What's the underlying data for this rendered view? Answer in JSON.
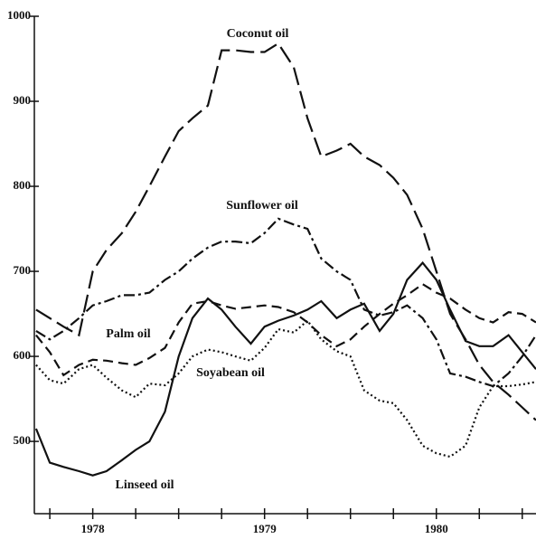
{
  "chart_data": {
    "type": "line",
    "x": [
      1977.67,
      1977.75,
      1977.83,
      1977.92,
      1978.0,
      1978.08,
      1978.17,
      1978.25,
      1978.33,
      1978.42,
      1978.5,
      1978.58,
      1978.67,
      1978.75,
      1978.83,
      1978.92,
      1979.0,
      1979.08,
      1979.17,
      1979.25,
      1979.33,
      1979.42,
      1979.5,
      1979.58,
      1979.67,
      1979.75,
      1979.83,
      1979.92,
      1980.0,
      1980.08,
      1980.17,
      1980.25,
      1980.33,
      1980.42,
      1980.5,
      1980.58
    ],
    "xlim": [
      1977.66,
      1980.58
    ],
    "xticks": [
      1978,
      1979,
      1980
    ],
    "xminorticks": [
      1977.75,
      1978.25,
      1978.5,
      1978.75,
      1979.25,
      1979.5,
      1979.75,
      1980.25,
      1980.5
    ],
    "ylim": [
      415,
      1000
    ],
    "yticks": [
      500,
      600,
      700,
      800,
      900,
      1000
    ],
    "series": [
      {
        "name": "Coconut oil",
        "color": "#111",
        "dash": "20,7",
        "values": [
          655,
          645,
          635,
          625,
          700,
          725,
          745,
          770,
          800,
          835,
          865,
          880,
          895,
          960,
          960,
          958,
          958,
          968,
          940,
          880,
          835,
          842,
          850,
          835,
          825,
          810,
          790,
          750,
          700,
          650,
          620,
          590,
          570,
          555,
          540,
          525
        ]
      },
      {
        "name": "Sunflower oil",
        "color": "#111",
        "dash": "12,4,3,4",
        "values": [
          630,
          620,
          630,
          645,
          660,
          665,
          672,
          672,
          675,
          690,
          700,
          715,
          728,
          735,
          735,
          733,
          745,
          762,
          755,
          750,
          715,
          700,
          690,
          655,
          648,
          652,
          660,
          645,
          620,
          580,
          576,
          570,
          565,
          580,
          600,
          625
        ]
      },
      {
        "name": "Palm oil",
        "color": "#111",
        "dash": "11,6",
        "values": [
          625,
          605,
          578,
          590,
          596,
          595,
          592,
          590,
          598,
          610,
          640,
          662,
          665,
          660,
          656,
          658,
          660,
          658,
          652,
          640,
          625,
          612,
          620,
          635,
          650,
          662,
          672,
          685,
          675,
          668,
          655,
          645,
          640,
          652,
          650,
          640
        ]
      },
      {
        "name": "Soyabean oil",
        "color": "#111",
        "dash": "2,3",
        "values": [
          590,
          572,
          568,
          585,
          590,
          575,
          560,
          552,
          568,
          566,
          580,
          600,
          608,
          605,
          600,
          595,
          610,
          632,
          628,
          642,
          620,
          606,
          600,
          560,
          548,
          545,
          525,
          495,
          486,
          482,
          495,
          540,
          565,
          565,
          567,
          570
        ]
      },
      {
        "name": "Linseed oil",
        "color": "#111",
        "dash": "none",
        "values": [
          515,
          475,
          470,
          465,
          460,
          465,
          478,
          490,
          500,
          535,
          600,
          645,
          668,
          655,
          635,
          615,
          635,
          642,
          648,
          655,
          665,
          645,
          655,
          662,
          630,
          650,
          690,
          710,
          690,
          655,
          618,
          612,
          612,
          625,
          605,
          585
        ]
      }
    ]
  }
}
